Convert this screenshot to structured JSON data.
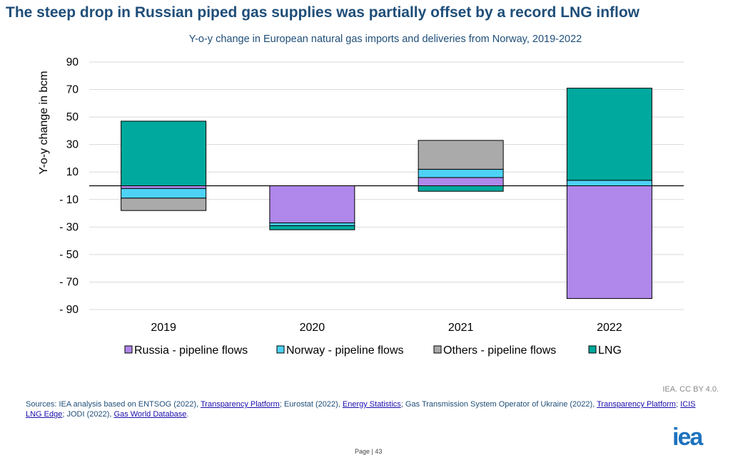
{
  "title": "The steep drop in Russian piped gas supplies was partially offset by a record LNG inflow",
  "credit": "IEA. CC BY 4.0.",
  "logo": "iea",
  "page_label": "Page | 43",
  "sources": {
    "p1": "Sources: IEA analysis based on ENTSOG (2022), ",
    "l1": "Transparency Platform",
    "p2": "; Eurostat (2022), ",
    "l2": "Energy Statistics",
    "p3": "; Gas Transmission System Operator of Ukraine (2022), ",
    "l3": "Transparency Platform",
    "p4": "; ",
    "l4": "ICIS LNG Edge",
    "p5": "; JODI (2022), ",
    "l5": "Gas World Database",
    "p6": "."
  },
  "chart_data": {
    "type": "bar",
    "stacked": true,
    "title": "Y-o-y change in European natural gas imports and deliveries from Norway, 2019-2022",
    "xlabel": "",
    "ylabel": "Y-o-y change in bcm",
    "ylim": [
      -90,
      90
    ],
    "yticks": [
      90,
      70,
      50,
      30,
      10,
      -10,
      -30,
      -50,
      -70,
      -90
    ],
    "ytick_labels": [
      "90",
      "70",
      "50",
      "30",
      "10",
      "- 10",
      "- 30",
      "- 50",
      "- 70",
      "- 90"
    ],
    "grid": true,
    "legend_position": "bottom",
    "categories": [
      "2019",
      "2020",
      "2021",
      "2022"
    ],
    "series": [
      {
        "name": "Russia - pipeline flows",
        "color": "#b087ea",
        "values": [
          -2,
          -27,
          6,
          -82
        ]
      },
      {
        "name": "Norway - pipeline flows",
        "color": "#4dd2f5",
        "values": [
          -7,
          -2,
          6,
          4
        ]
      },
      {
        "name": "Others - pipeline flows",
        "color": "#aaaaaa",
        "values": [
          -9,
          0,
          21,
          0
        ]
      },
      {
        "name": "LNG",
        "color": "#00a99d",
        "values": [
          47,
          -3,
          -4,
          67
        ]
      }
    ]
  }
}
